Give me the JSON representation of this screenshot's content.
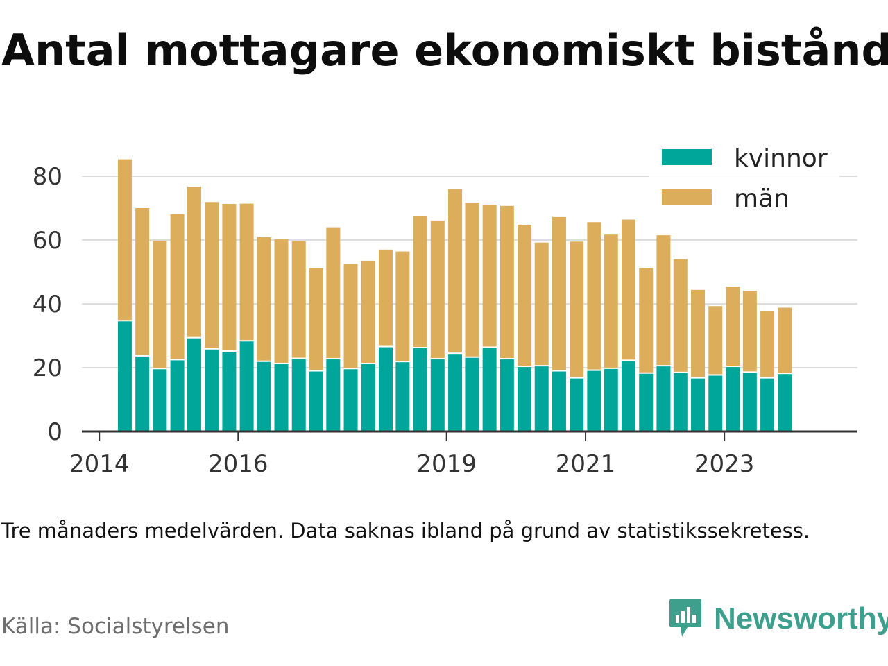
{
  "title": "Antal mottagare ekonomiskt bistånd",
  "note": "Tre månaders medelvärden. Data saknas ibland på grund av statistikssekretess.",
  "source": "Källa: Socialstyrelsen",
  "brand": {
    "name": "Newsworthy",
    "color": "#3f9f8d",
    "icon": "newsworthy-logo-icon"
  },
  "colors": {
    "kvinnor": "#00a69a",
    "man": "#dcae5c",
    "grid": "#dddddd",
    "axis": "#333333"
  },
  "chart_data": {
    "type": "bar",
    "stacked": true,
    "title": "Antal mottagare ekonomiskt bistånd",
    "xlabel": "",
    "ylabel": "",
    "ylim": [
      0,
      90
    ],
    "yticks": [
      0,
      20,
      40,
      60,
      80
    ],
    "xlim": [
      "2013-10-01",
      "2024-12-01"
    ],
    "xticks": [
      {
        "label": "2014",
        "date": "2014-01-01"
      },
      {
        "label": "2016",
        "date": "2016-01-01"
      },
      {
        "label": "2019",
        "date": "2019-01-01"
      },
      {
        "label": "2021",
        "date": "2021-01-01"
      },
      {
        "label": "2023",
        "date": "2023-01-01"
      }
    ],
    "legend_position": "top-right",
    "grid": true,
    "x": [
      "2014-05-15",
      "2014-08-15",
      "2014-11-15",
      "2015-02-15",
      "2015-05-15",
      "2015-08-15",
      "2015-11-15",
      "2016-02-15",
      "2016-05-15",
      "2016-08-15",
      "2016-11-15",
      "2017-02-15",
      "2017-05-15",
      "2017-08-15",
      "2017-11-15",
      "2018-02-15",
      "2018-05-15",
      "2018-08-15",
      "2018-11-15",
      "2019-02-15",
      "2019-05-15",
      "2019-08-15",
      "2019-11-15",
      "2020-02-15",
      "2020-05-15",
      "2020-08-15",
      "2020-11-15",
      "2021-02-15",
      "2021-05-15",
      "2021-08-15",
      "2021-11-15",
      "2022-02-15",
      "2022-05-15",
      "2022-08-15",
      "2022-11-15",
      "2023-02-15",
      "2023-05-15",
      "2023-08-15",
      "2023-11-15"
    ],
    "series": [
      {
        "name": "kvinnor",
        "color": "#00a69a",
        "values": [
          34.5,
          23.5,
          19.5,
          22.3,
          29.2,
          25.7,
          25,
          28.2,
          21.8,
          21.1,
          22.7,
          18.8,
          22.6,
          19.5,
          21.1,
          26.4,
          21.7,
          26.1,
          22.6,
          24.3,
          23.1,
          26.2,
          22.6,
          20.2,
          20.4,
          18.8,
          16.6,
          19,
          19.6,
          22.1,
          18.1,
          20.4,
          18.3,
          16.6,
          17.5,
          20.2,
          18.4,
          16.6,
          18
        ]
      },
      {
        "name": "män",
        "color": "#dcae5c",
        "values": [
          50.8,
          46.5,
          40.3,
          45.8,
          47.5,
          46.2,
          46.3,
          43.2,
          39.1,
          39.1,
          37,
          32.4,
          41.4,
          33,
          32.4,
          30.6,
          34.7,
          41.3,
          43.5,
          51.7,
          48.6,
          44.9,
          48.1,
          44.6,
          38.8,
          48.4,
          42.9,
          46.6,
          42.1,
          44.3,
          33.1,
          41.1,
          35.7,
          27.8,
          21.8,
          25.2,
          25.7,
          21.2,
          20.8
        ]
      }
    ]
  }
}
